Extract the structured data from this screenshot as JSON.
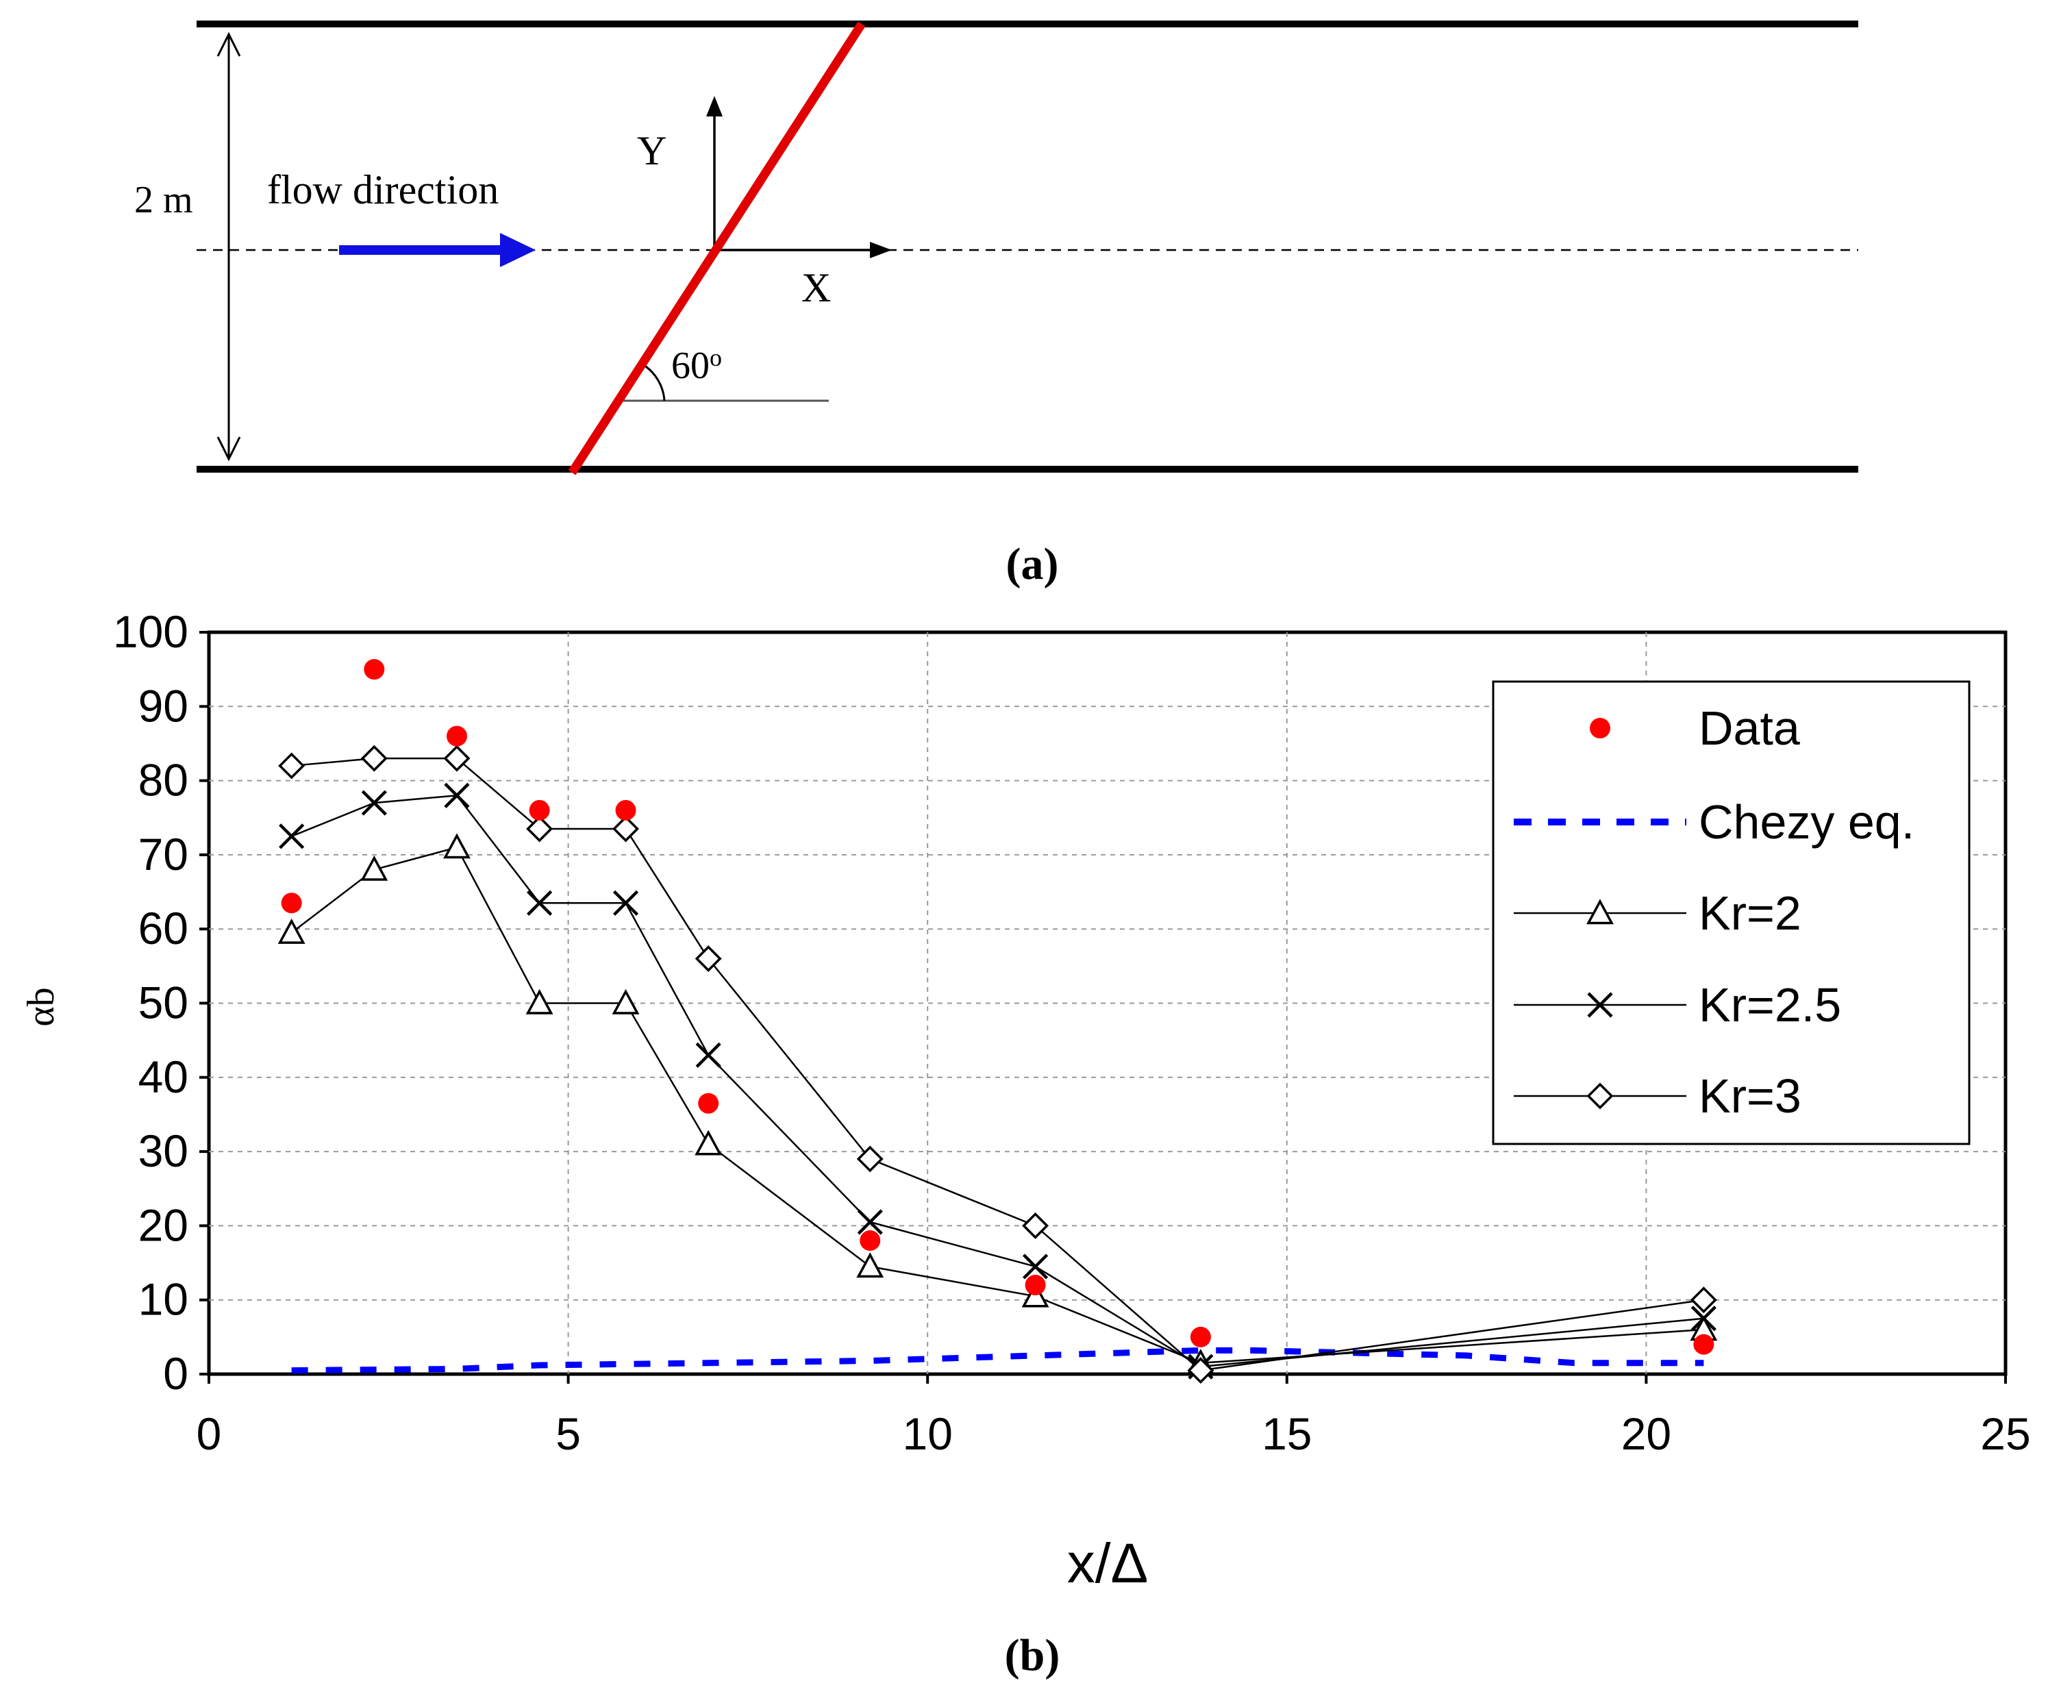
{
  "panel_a": {
    "width_label": "2 m",
    "flow_label": "flow direction",
    "y_axis_label": "Y",
    "x_axis_label": "X",
    "angle_label": "60",
    "angle_unit": "o",
    "caption": "(a)",
    "colors": {
      "walls": "#000000",
      "weir": "#e00000",
      "arrow": "#1010e0"
    }
  },
  "panel_b": {
    "caption": "(b)"
  },
  "chart_data": {
    "type": "line",
    "title": "",
    "xlabel": "x/Δ",
    "ylabel": "αb",
    "xlim": [
      0,
      25
    ],
    "ylim": [
      0,
      100
    ],
    "xticks": [
      0,
      5,
      10,
      15,
      20,
      25
    ],
    "yticks": [
      0,
      10,
      20,
      30,
      40,
      50,
      60,
      70,
      80,
      90,
      100
    ],
    "grid": true,
    "legend_position": "top-right",
    "series": [
      {
        "name": "Data",
        "style": "markers",
        "marker": "circle",
        "color": "#ff0000",
        "x": [
          1.15,
          2.3,
          3.45,
          4.6,
          5.8,
          6.95,
          9.2,
          11.5,
          13.8,
          20.8
        ],
        "y": [
          63.5,
          95,
          86,
          76,
          76,
          36.5,
          18,
          12,
          5,
          4
        ]
      },
      {
        "name": "Chezy eq.",
        "style": "dashed",
        "marker": "none",
        "color": "#0000ff",
        "x": [
          1.15,
          3.45,
          4.6,
          6.95,
          9.2,
          11.5,
          13.8,
          14.5,
          17.5,
          19.0,
          20.8
        ],
        "y": [
          0.5,
          0.7,
          1.2,
          1.5,
          1.8,
          2.5,
          3.2,
          3.2,
          2.5,
          1.5,
          1.5
        ]
      },
      {
        "name": "Kr=2",
        "style": "line",
        "marker": "triangle",
        "color": "#000000",
        "x": [
          1.15,
          2.3,
          3.45,
          4.6,
          5.8,
          6.95,
          9.2,
          11.5,
          13.8,
          20.8
        ],
        "y": [
          59.5,
          68,
          71,
          50,
          50,
          31,
          14.5,
          10.5,
          1.5,
          6
        ]
      },
      {
        "name": "Kr=2.5",
        "style": "line",
        "marker": "x",
        "color": "#000000",
        "x": [
          1.15,
          2.3,
          3.45,
          4.6,
          5.8,
          6.95,
          9.2,
          11.5,
          13.8,
          20.8
        ],
        "y": [
          72.5,
          77,
          78,
          63.5,
          63.5,
          43,
          20.5,
          14.5,
          1,
          7.5
        ]
      },
      {
        "name": "Kr=3",
        "style": "line",
        "marker": "diamond",
        "color": "#000000",
        "x": [
          1.15,
          2.3,
          3.45,
          4.6,
          5.8,
          6.95,
          9.2,
          11.5,
          13.8,
          20.8
        ],
        "y": [
          82,
          83,
          83,
          73.5,
          73.5,
          56,
          29,
          20,
          0.5,
          10
        ]
      }
    ]
  }
}
